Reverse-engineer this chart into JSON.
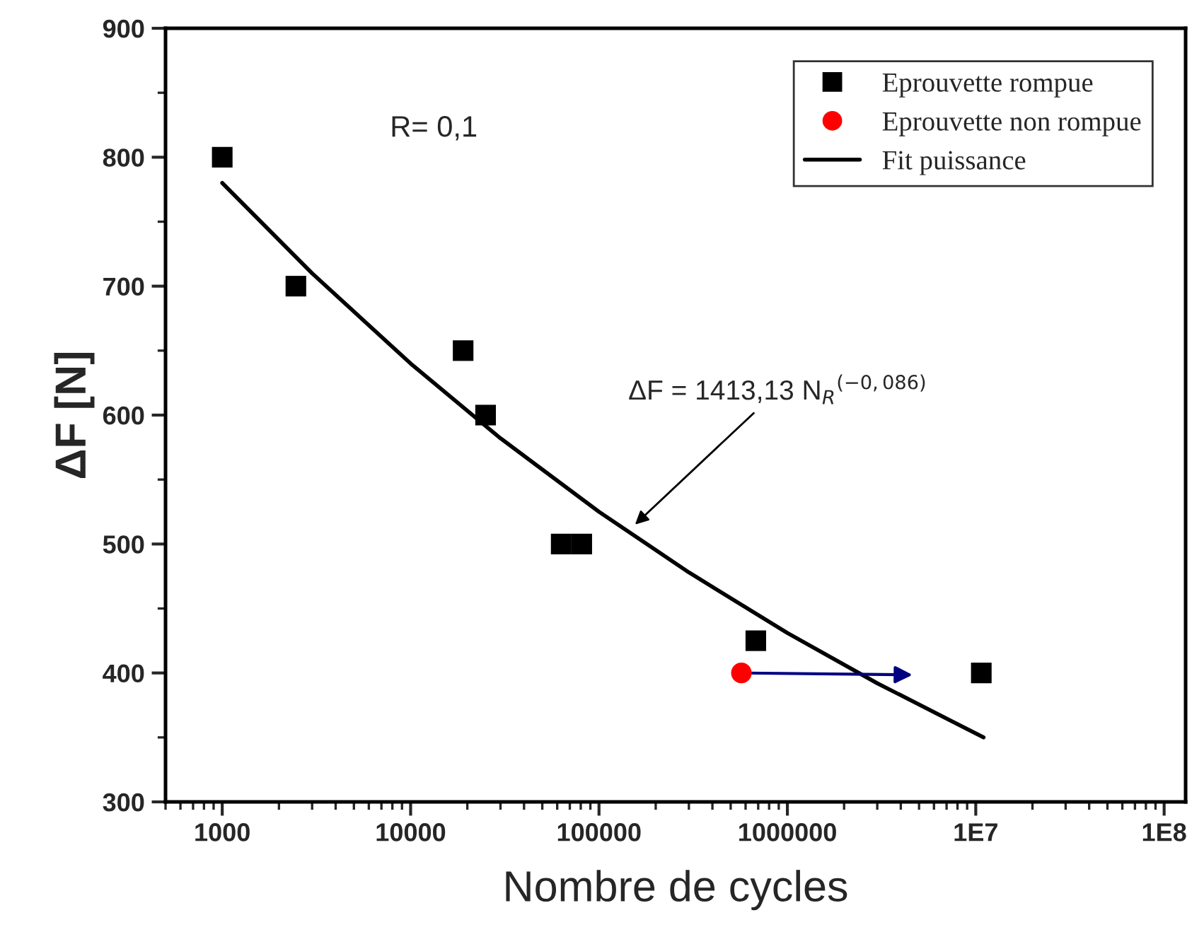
{
  "chart_data": {
    "type": "scatter",
    "xlabel": "Nombre de cycles",
    "ylabel": "ΔF [N]",
    "log": "x",
    "xlim": [
      500,
      130000000
    ],
    "xticks": [
      1000,
      10000,
      100000,
      1000000,
      {
        "value": 10000000,
        "label": "1E7"
      },
      {
        "value": 100000000,
        "label": "1E8"
      }
    ],
    "ylim": [
      300,
      900
    ],
    "yticks": [
      300,
      400,
      500,
      600,
      700,
      800,
      900
    ],
    "grid": false,
    "legend": "top right",
    "series": [
      {
        "name": "Eprouvette rompue",
        "marker": "square",
        "color": "#000000",
        "x": [
          1000,
          2460,
          19000,
          25000,
          63000,
          81000,
          680000,
          10700000
        ],
        "values": [
          800,
          700,
          650,
          600,
          500,
          500,
          425,
          400
        ]
      },
      {
        "name": "Eprouvette non rompue",
        "marker": "circle",
        "color": "#ff0000",
        "x": [
          570000
        ],
        "values": [
          400
        ]
      },
      {
        "name": "Fit puissance",
        "type": "line",
        "marker": "none",
        "line_style": "solid",
        "color": "#000000",
        "x": [
          1000,
          3000,
          10000,
          30000,
          100000,
          300000,
          1000000,
          3000000,
          11000000
        ],
        "values": [
          780,
          710,
          640,
          582,
          525,
          478,
          431,
          392,
          350
        ]
      }
    ],
    "annotations": [
      "R= 0,1",
      {
        "text": "ΔF = 1413,13 N$_{R}$$^{(−0,086)}$",
        "x": 150000,
        "y": 513
      }
    ]
  }
}
